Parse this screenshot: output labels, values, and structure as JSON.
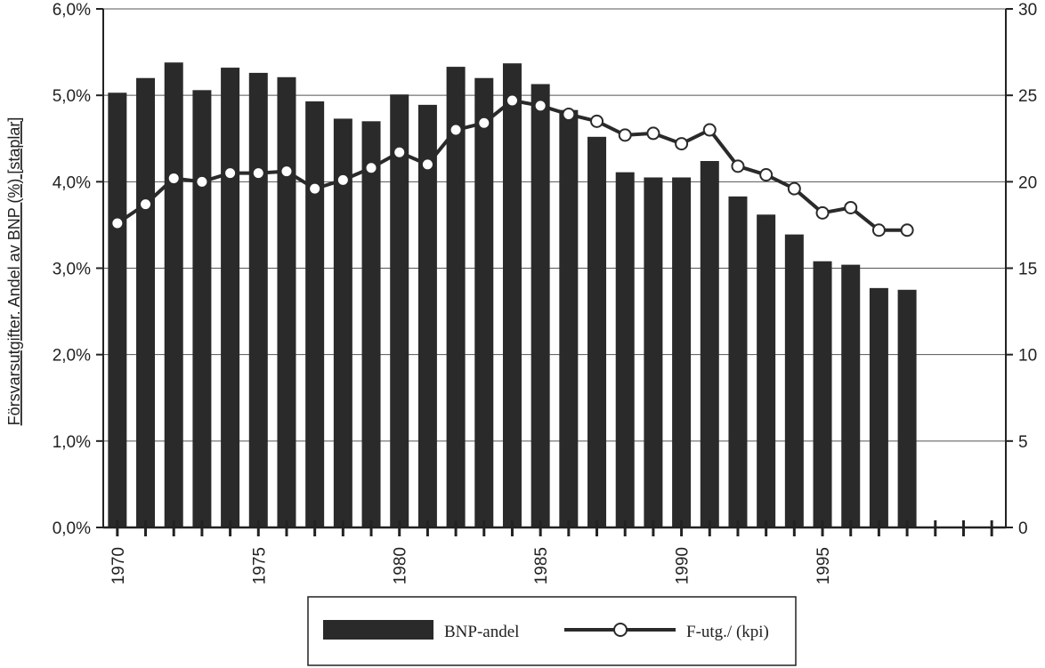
{
  "chart_data": {
    "type": "bar",
    "ylabel_left": "Försvarsutgifter. Andel av BNP (%) [staplar]",
    "ylim_left": [
      0,
      6
    ],
    "ylim_right": [
      0,
      30
    ],
    "left_tick_labels": [
      "0,0%",
      "1,0%",
      "2,0%",
      "3,0%",
      "4,0%",
      "5,0%",
      "6,0%"
    ],
    "right_tick_labels": [
      "0",
      "5",
      "10",
      "15",
      "20",
      "25",
      "30"
    ],
    "x_tick_labels": [
      "1970",
      "1975",
      "1980",
      "1985",
      "1990",
      "1995"
    ],
    "grid": true,
    "legend_position": "bottom",
    "series": [
      {
        "name": "BNP-andel",
        "type": "bar",
        "axis": "left",
        "color": "#2a2a2a",
        "x": [
          1970,
          1971,
          1972,
          1973,
          1974,
          1975,
          1976,
          1977,
          1978,
          1979,
          1980,
          1981,
          1982,
          1983,
          1984,
          1985,
          1986,
          1987,
          1988,
          1989,
          1990,
          1991,
          1992,
          1993,
          1994,
          1995,
          1996,
          1997,
          1998
        ],
        "values": [
          5.03,
          5.2,
          5.38,
          5.06,
          5.32,
          5.26,
          5.21,
          4.93,
          4.73,
          4.7,
          5.01,
          4.89,
          5.33,
          5.2,
          5.37,
          5.13,
          4.83,
          4.52,
          4.11,
          4.05,
          4.05,
          4.24,
          3.83,
          3.62,
          3.39,
          3.08,
          3.04,
          2.77,
          2.75
        ]
      },
      {
        "name": "F-utg./ (kpi)",
        "type": "line",
        "axis": "right",
        "color": "#2a2a2a",
        "x": [
          1970,
          1971,
          1972,
          1973,
          1974,
          1975,
          1976,
          1977,
          1978,
          1979,
          1980,
          1981,
          1982,
          1983,
          1984,
          1985,
          1986,
          1987,
          1988,
          1989,
          1990,
          1991,
          1992,
          1993,
          1994,
          1995,
          1996,
          1997,
          1998
        ],
        "values": [
          17.6,
          18.7,
          20.2,
          20.0,
          20.5,
          20.5,
          20.6,
          19.6,
          20.1,
          20.8,
          21.7,
          21.0,
          23.0,
          23.4,
          24.7,
          24.4,
          23.9,
          23.5,
          22.7,
          22.8,
          22.2,
          23.0,
          20.9,
          20.4,
          19.6,
          18.2,
          18.5,
          17.2,
          17.2
        ]
      }
    ]
  }
}
